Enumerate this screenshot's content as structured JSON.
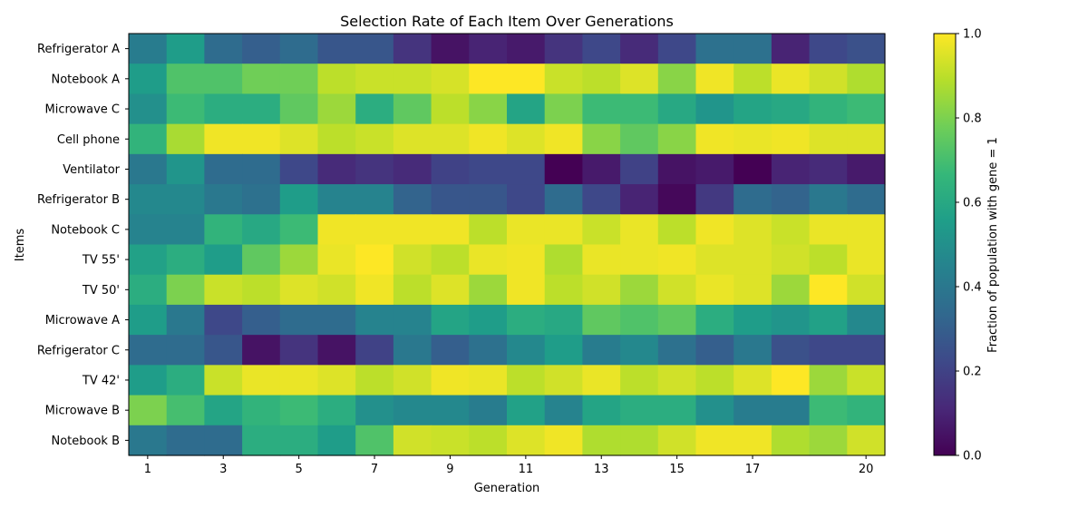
{
  "chart_data": {
    "type": "heatmap",
    "title": "Selection Rate of Each Item Over Generations",
    "xlabel": "Generation",
    "ylabel": "Items",
    "x_tick_labels": [
      "1",
      "3",
      "5",
      "7",
      "9",
      "11",
      "13",
      "15",
      "17",
      "20"
    ],
    "x_tick_positions": [
      1,
      3,
      5,
      7,
      9,
      11,
      13,
      15,
      17,
      20
    ],
    "generations": [
      1,
      2,
      3,
      4,
      5,
      6,
      7,
      8,
      9,
      10,
      11,
      12,
      13,
      14,
      15,
      16,
      17,
      18,
      19,
      20
    ],
    "rows": [
      "Refrigerator A",
      "Notebook A",
      "Microwave C",
      "Cell phone",
      "Ventilator",
      "Refrigerator B",
      "Notebook C",
      "TV 55'",
      "TV 50'",
      "Microwave A",
      "Refrigerator C",
      "TV 42'",
      "Microwave B",
      "Notebook B"
    ],
    "values": [
      [
        0.42,
        0.55,
        0.35,
        0.3,
        0.35,
        0.27,
        0.27,
        0.15,
        0.05,
        0.1,
        0.07,
        0.15,
        0.22,
        0.12,
        0.22,
        0.37,
        0.37,
        0.1,
        0.22,
        0.25
      ],
      [
        0.55,
        0.72,
        0.72,
        0.78,
        0.78,
        0.9,
        0.92,
        0.92,
        0.94,
        1.0,
        1.0,
        0.92,
        0.9,
        0.95,
        0.82,
        0.98,
        0.9,
        0.97,
        0.93,
        0.88
      ],
      [
        0.5,
        0.68,
        0.62,
        0.62,
        0.75,
        0.85,
        0.62,
        0.75,
        0.9,
        0.82,
        0.58,
        0.8,
        0.68,
        0.68,
        0.6,
        0.52,
        0.58,
        0.6,
        0.65,
        0.68
      ],
      [
        0.65,
        0.87,
        0.98,
        0.98,
        0.95,
        0.9,
        0.92,
        0.95,
        0.95,
        0.98,
        0.95,
        0.98,
        0.82,
        0.75,
        0.82,
        0.98,
        0.97,
        0.98,
        0.95,
        0.95
      ],
      [
        0.4,
        0.52,
        0.35,
        0.35,
        0.22,
        0.12,
        0.15,
        0.12,
        0.2,
        0.22,
        0.22,
        0.0,
        0.07,
        0.2,
        0.05,
        0.07,
        0.0,
        0.1,
        0.12,
        0.07
      ],
      [
        0.47,
        0.47,
        0.4,
        0.37,
        0.55,
        0.45,
        0.45,
        0.32,
        0.27,
        0.27,
        0.22,
        0.35,
        0.22,
        0.1,
        0.02,
        0.17,
        0.35,
        0.32,
        0.4,
        0.35
      ],
      [
        0.45,
        0.45,
        0.65,
        0.6,
        0.68,
        0.98,
        0.98,
        0.98,
        0.98,
        0.9,
        0.97,
        0.97,
        0.92,
        0.97,
        0.9,
        0.98,
        0.95,
        0.92,
        0.97,
        0.97
      ],
      [
        0.57,
        0.62,
        0.55,
        0.75,
        0.85,
        0.97,
        1.0,
        0.93,
        0.9,
        0.97,
        0.98,
        0.88,
        0.97,
        0.97,
        0.98,
        0.95,
        0.95,
        0.93,
        0.9,
        0.97
      ],
      [
        0.62,
        0.8,
        0.92,
        0.9,
        0.95,
        0.93,
        0.98,
        0.9,
        0.95,
        0.85,
        0.98,
        0.9,
        0.93,
        0.85,
        0.93,
        0.97,
        0.95,
        0.85,
        1.0,
        0.93
      ],
      [
        0.55,
        0.4,
        0.22,
        0.3,
        0.35,
        0.35,
        0.45,
        0.45,
        0.58,
        0.55,
        0.62,
        0.6,
        0.75,
        0.72,
        0.75,
        0.62,
        0.55,
        0.52,
        0.57,
        0.47
      ],
      [
        0.35,
        0.35,
        0.27,
        0.05,
        0.15,
        0.05,
        0.2,
        0.4,
        0.3,
        0.37,
        0.47,
        0.55,
        0.42,
        0.47,
        0.37,
        0.3,
        0.4,
        0.25,
        0.22,
        0.22
      ],
      [
        0.55,
        0.62,
        0.92,
        0.97,
        0.97,
        0.95,
        0.9,
        0.93,
        0.98,
        0.97,
        0.9,
        0.93,
        0.97,
        0.9,
        0.93,
        0.9,
        0.95,
        1.0,
        0.85,
        0.92
      ],
      [
        0.8,
        0.7,
        0.58,
        0.65,
        0.68,
        0.62,
        0.5,
        0.47,
        0.47,
        0.42,
        0.57,
        0.45,
        0.58,
        0.62,
        0.62,
        0.5,
        0.42,
        0.42,
        0.68,
        0.65
      ],
      [
        0.4,
        0.35,
        0.35,
        0.62,
        0.62,
        0.55,
        0.72,
        0.93,
        0.92,
        0.9,
        0.95,
        0.98,
        0.88,
        0.88,
        0.93,
        0.98,
        0.98,
        0.88,
        0.85,
        0.93
      ]
    ],
    "colorbar": {
      "label": "Fraction of population with gene = 1",
      "range": [
        0,
        1
      ],
      "tick_labels": [
        "0.0",
        "0.2",
        "0.4",
        "0.6",
        "0.8",
        "1.0"
      ],
      "tick_values": [
        0,
        0.2,
        0.4,
        0.6,
        0.8,
        1.0
      ],
      "colormap": "viridis",
      "colormap_stops": [
        "#440154",
        "#482878",
        "#3e4989",
        "#31688e",
        "#26828e",
        "#1f9e89",
        "#35b779",
        "#6ece58",
        "#b5de2b",
        "#fde725"
      ]
    },
    "grid": false
  }
}
